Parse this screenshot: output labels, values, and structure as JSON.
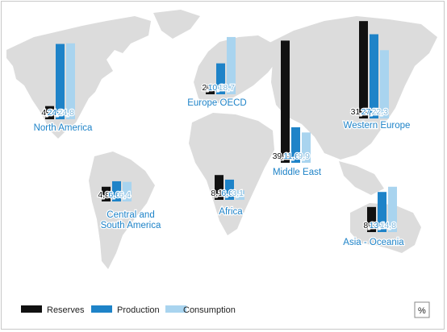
{
  "colors": {
    "reserves": "#111111",
    "production": "#1e83c8",
    "consumption": "#a9d4ef",
    "region_label": "#1e83c8",
    "map": "#dcdcdc"
  },
  "legend": {
    "reserves_label": "Reserves",
    "production_label": "Production",
    "consumption_label": "Consumption"
  },
  "unit": "%",
  "chart_data": {
    "type": "bar",
    "title": "",
    "series": [
      {
        "name": "Reserves",
        "key": "reserves"
      },
      {
        "name": "Production",
        "key": "production"
      },
      {
        "name": "Consumption",
        "key": "consumption"
      }
    ],
    "regions": [
      {
        "name": "North America",
        "reserves": 4.3,
        "production": 24.6,
        "consumption": 24.8,
        "labels": [
          "4,3",
          "24,6",
          "24,8"
        ]
      },
      {
        "name": "Central and South America",
        "name_lines": [
          "Central and",
          "South America"
        ],
        "reserves": 4.8,
        "production": 6.6,
        "consumption": 6.4,
        "labels": [
          "4,8",
          "6,6",
          "6,4"
        ]
      },
      {
        "name": "Europe OECD",
        "reserves": 2.9,
        "production": 10.1,
        "consumption": 18.7,
        "labels": [
          "2,9",
          "10,1",
          "18,7"
        ]
      },
      {
        "name": "Africa",
        "reserves": 8.1,
        "production": 6.6,
        "consumption": 3.1,
        "labels": [
          "8,1",
          "6,6",
          "3,1"
        ]
      },
      {
        "name": "Middle East",
        "reserves": 39.9,
        "production": 11.6,
        "consumption": 9.9,
        "labels": [
          "39,9",
          "11,6",
          "9,9"
        ]
      },
      {
        "name": "Western Europe",
        "reserves": 31.8,
        "production": 27.5,
        "consumption": 22.3,
        "labels": [
          "31,8",
          "27,5",
          "22,3"
        ]
      },
      {
        "name": "Asia - Oceania",
        "reserves": 8.2,
        "production": 13.1,
        "consumption": 14.8,
        "labels": [
          "8,2",
          "13,1",
          "14,8"
        ]
      }
    ]
  }
}
